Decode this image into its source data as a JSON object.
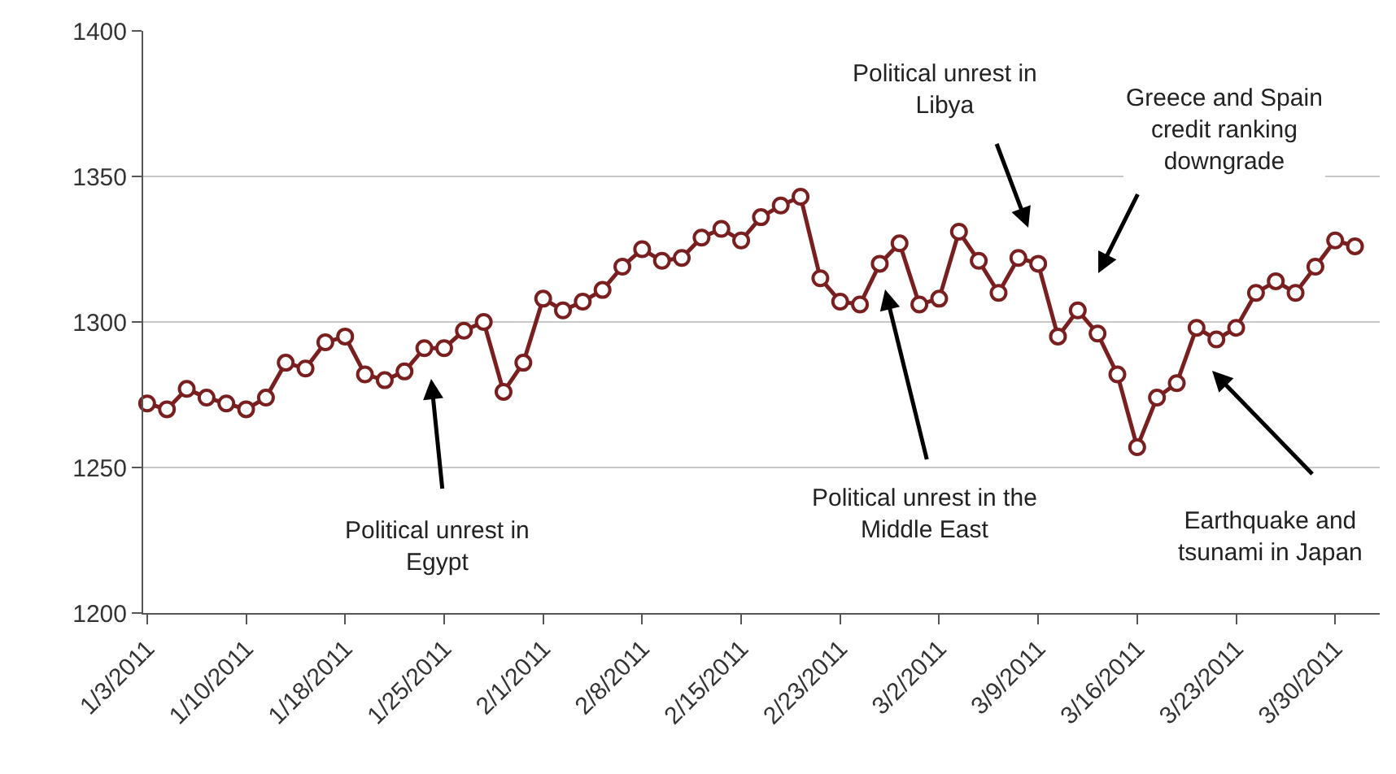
{
  "chart_data": {
    "type": "line",
    "categories": [
      "1/3/2011",
      null,
      null,
      null,
      null,
      "1/10/2011",
      null,
      null,
      null,
      null,
      "1/18/2011",
      null,
      null,
      null,
      null,
      "1/25/2011",
      null,
      null,
      null,
      null,
      "2/1/2011",
      null,
      null,
      null,
      null,
      "2/8/2011",
      null,
      null,
      null,
      null,
      "2/15/2011",
      null,
      null,
      null,
      null,
      "2/23/2011",
      null,
      null,
      null,
      null,
      "3/2/2011",
      null,
      null,
      null,
      null,
      "3/9/2011",
      null,
      null,
      null,
      null,
      "3/16/2011",
      null,
      null,
      null,
      null,
      "3/23/2011",
      null,
      null,
      null,
      null,
      "3/30/2011",
      null
    ],
    "series": [
      {
        "color": "#7a1f1f",
        "values": [
          1272,
          1270,
          1277,
          1274,
          1272,
          1270,
          1274,
          1286,
          1284,
          1293,
          1295,
          1282,
          1280,
          1283,
          1291,
          1291,
          1297,
          1300,
          1276,
          1286,
          1308,
          1304,
          1307,
          1311,
          1319,
          1325,
          1321,
          1322,
          1329,
          1332,
          1328,
          1336,
          1340,
          1343,
          1315,
          1307,
          1306,
          1320,
          1327,
          1306,
          1308,
          1331,
          1321,
          1310,
          1322,
          1320,
          1295,
          1304,
          1296,
          1282,
          1257,
          1274,
          1279,
          1298,
          1294,
          1298,
          1310,
          1314,
          1310,
          1319,
          1328,
          1326
        ]
      }
    ],
    "ylim": [
      1200,
      1400
    ],
    "yticks": [
      1200,
      1250,
      1300,
      1350,
      1400
    ],
    "grid": "y",
    "marker": "circle",
    "line_style": "solid",
    "annotations": [
      "Political unrest in\nEgypt",
      "Political unrest in the\nMiddle East",
      "Political unrest in\nLibya",
      "Greece and Spain\ncredit ranking\ndowngrade",
      "Earthquake and\ntsunami in Japan"
    ]
  }
}
